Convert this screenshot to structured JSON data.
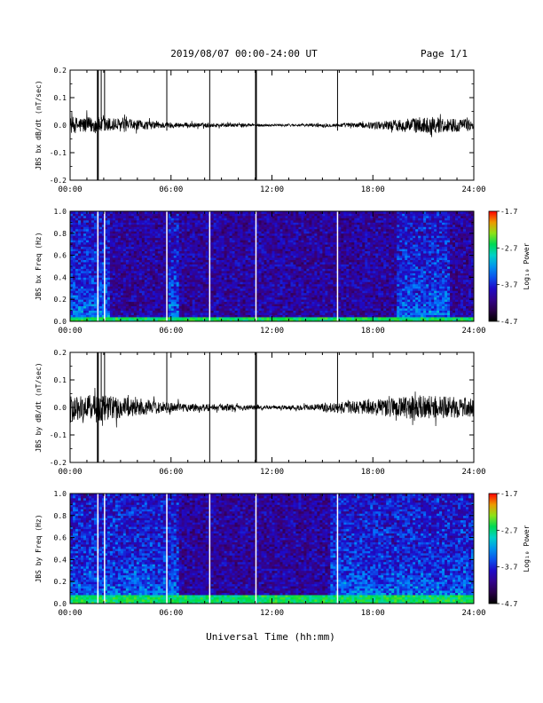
{
  "header": {
    "title": "2019/08/07  00:00-24:00 UT",
    "page": "Page 1/1"
  },
  "xlabel": "Universal Time (hh:mm)",
  "chart_data": [
    {
      "type": "line",
      "ylabel": "JBS bx dB/dt (nT/sec)",
      "xlim": [
        0,
        24
      ],
      "ylim": [
        -0.2,
        0.2
      ],
      "x_ticks": [
        "00:00",
        "06:00",
        "12:00",
        "18:00",
        "24:00"
      ],
      "y_ticks": [
        "-0.2",
        "-0.1",
        "0.0",
        "0.1",
        "0.2"
      ],
      "noise_envelope_hours": [
        0,
        2,
        4,
        6,
        8,
        10,
        12,
        14,
        16,
        18,
        19,
        20,
        21,
        22,
        24
      ],
      "noise_envelope_amplitude": [
        0.03,
        0.03,
        0.018,
        0.01,
        0.008,
        0.006,
        0.004,
        0.005,
        0.007,
        0.012,
        0.018,
        0.025,
        0.03,
        0.028,
        0.02
      ],
      "spikes_hours": [
        1.65,
        1.85,
        2.05,
        5.75,
        8.3,
        11.05,
        15.9
      ],
      "spikes_ymin": [
        -0.2,
        0.02,
        -0.02,
        -0.02,
        -0.2,
        -0.2,
        -0.02
      ],
      "spikes_ymax": [
        0.2,
        0.2,
        0.2,
        0.2,
        0.2,
        0.2,
        0.2
      ]
    },
    {
      "type": "heatmap",
      "ylabel": "JBS bx Freq (Hz)",
      "xlim": [
        0,
        24
      ],
      "ylim": [
        0,
        1.0
      ],
      "x_ticks": [
        "00:00",
        "06:00",
        "12:00",
        "18:00",
        "24:00"
      ],
      "y_ticks": [
        "0.0",
        "0.2",
        "0.4",
        "0.6",
        "0.8",
        "1.0"
      ],
      "colorbar_label": "Log₁₀ Power",
      "colorbar_ticks": [
        "-1.7",
        "-2.7",
        "-3.7",
        "-4.7"
      ],
      "colorbar_range": [
        -4.7,
        -1.7
      ],
      "gaps_hours": [
        1.65,
        2.05,
        5.75,
        8.3,
        11.05,
        15.9
      ],
      "low_freq_band_max_hz": 0.05,
      "activity_hours": [
        [
          0,
          2.3
        ],
        [
          5.8,
          6.4
        ],
        [
          19.5,
          22.5
        ]
      ]
    },
    {
      "type": "line",
      "ylabel": "JBS by dB/dt (nT/sec)",
      "xlim": [
        0,
        24
      ],
      "ylim": [
        -0.2,
        0.2
      ],
      "x_ticks": [
        "00:00",
        "06:00",
        "12:00",
        "18:00",
        "24:00"
      ],
      "y_ticks": [
        "-0.2",
        "-0.1",
        "0.0",
        "0.1",
        "0.2"
      ],
      "noise_envelope_hours": [
        0,
        2,
        4,
        6,
        8,
        10,
        12,
        14,
        16,
        18,
        19,
        20,
        21,
        22,
        24
      ],
      "noise_envelope_amplitude": [
        0.045,
        0.05,
        0.03,
        0.018,
        0.014,
        0.01,
        0.006,
        0.01,
        0.018,
        0.03,
        0.035,
        0.04,
        0.045,
        0.04,
        0.035
      ],
      "spikes_hours": [
        1.65,
        1.85,
        2.05,
        5.75,
        8.3,
        11.05,
        15.9
      ],
      "spikes_ymin": [
        -0.2,
        0.02,
        -0.02,
        -0.02,
        -0.2,
        -0.2,
        -0.02
      ],
      "spikes_ymax": [
        0.2,
        0.2,
        0.2,
        0.2,
        0.2,
        0.2,
        0.2
      ]
    },
    {
      "type": "heatmap",
      "ylabel": "JBS by Freq (Hz)",
      "xlim": [
        0,
        24
      ],
      "ylim": [
        0,
        1.0
      ],
      "x_ticks": [
        "00:00",
        "06:00",
        "12:00",
        "18:00",
        "24:00"
      ],
      "y_ticks": [
        "0.0",
        "0.2",
        "0.4",
        "0.6",
        "0.8",
        "1.0"
      ],
      "colorbar_label": "Log₁₀ Power",
      "colorbar_ticks": [
        "-1.7",
        "-2.7",
        "-3.7",
        "-4.7"
      ],
      "colorbar_range": [
        -4.7,
        -1.7
      ],
      "gaps_hours": [
        1.65,
        2.05,
        5.75,
        8.3,
        11.05,
        15.9
      ],
      "low_freq_band_max_hz": 0.08,
      "activity_hours": [
        [
          0,
          6.5
        ],
        [
          15.5,
          24
        ]
      ]
    }
  ]
}
